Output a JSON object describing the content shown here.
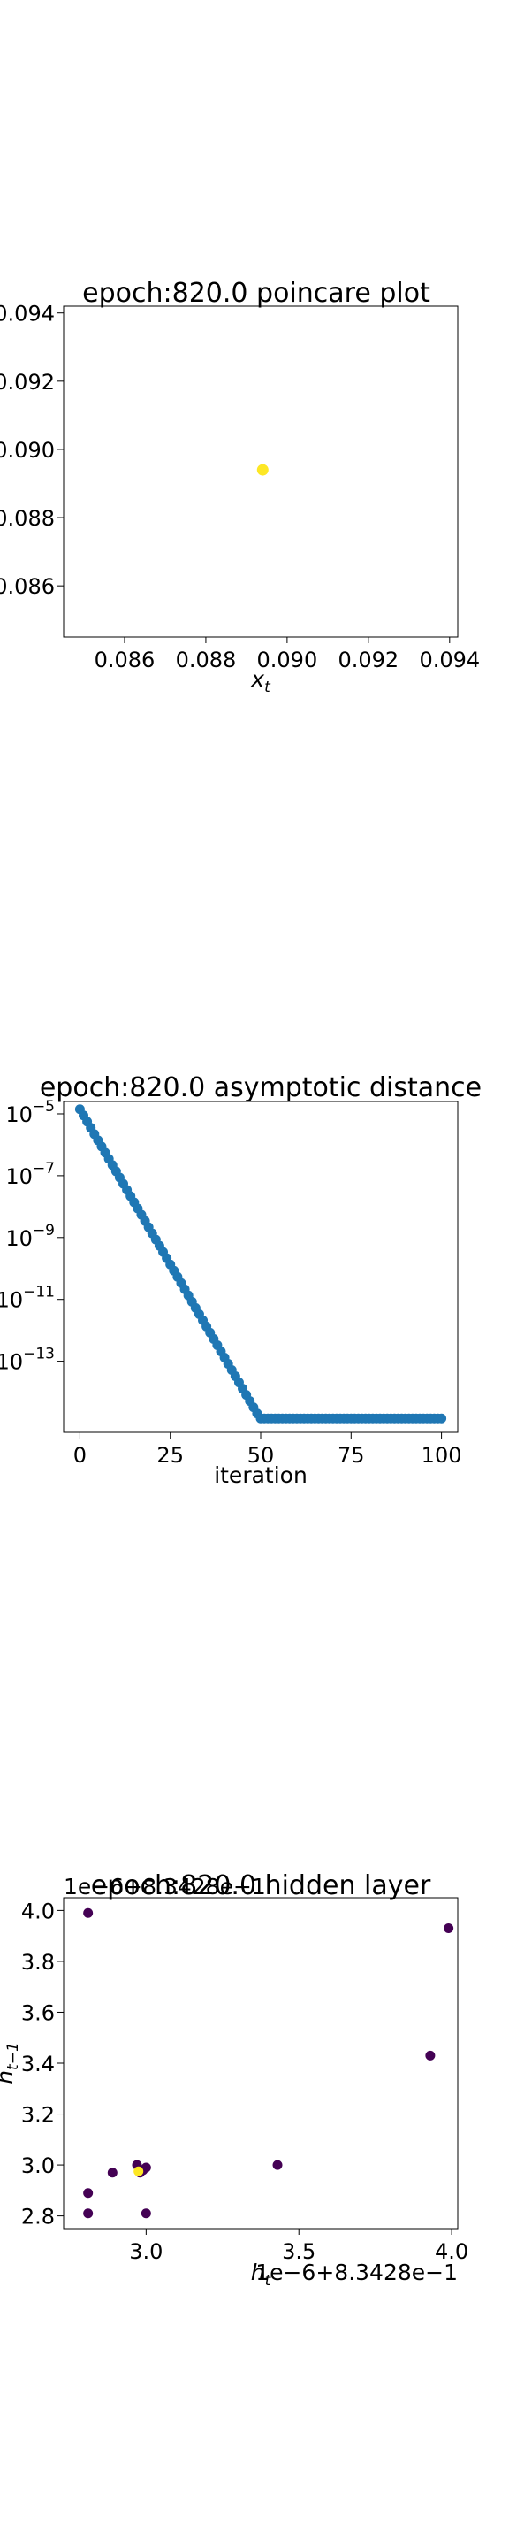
{
  "chart_data": [
    {
      "type": "scatter",
      "title": "epoch:820.0 poincare plot",
      "xlabel": "x_t",
      "ylabel": "",
      "xlim": [
        0.0845,
        0.0942
      ],
      "ylim": [
        0.0845,
        0.0942
      ],
      "xticks": [
        0.086,
        0.088,
        0.09,
        0.092,
        0.094
      ],
      "xtick_labels": [
        "0.086",
        "0.088",
        "0.090",
        "0.092",
        "0.094"
      ],
      "yticks": [
        0.086,
        0.088,
        0.09,
        0.092,
        0.094
      ],
      "ytick_labels": [
        "0.086",
        "0.088",
        "0.090",
        "0.092",
        "0.094"
      ],
      "points": [
        {
          "x": 0.0894,
          "y": 0.0894
        }
      ],
      "point_color": "#fde725",
      "grid": false
    },
    {
      "type": "scatter",
      "title": "epoch:820.0 asymptotic distance",
      "xlabel": "iteration",
      "ylabel": "",
      "y_scale": "log",
      "xlim": [
        -4.5,
        104.5
      ],
      "ylim_log10": [
        -15.3,
        -4.6
      ],
      "xticks": [
        0,
        25,
        50,
        75,
        100
      ],
      "xtick_labels": [
        "0",
        "25",
        "50",
        "75",
        "100"
      ],
      "ytick_exponents": [
        -5,
        -7,
        -9,
        -11,
        -13
      ],
      "ytick_labels": [
        "10",
        "10",
        "10",
        "10",
        "10"
      ],
      "ytick_sup": [
        "−5",
        "−7",
        "−9",
        "−11",
        "−13"
      ],
      "x_start": 0,
      "x_end": 100,
      "log10_start": -4.85,
      "log10_slope": -0.2008,
      "log10_floor": -14.85,
      "point_color": "#1f77b4",
      "grid": false
    },
    {
      "type": "scatter",
      "title": "epoch:820.0 hidden layer",
      "xlabel": "h_t",
      "ylabel": "h_{t−1}",
      "x_offset_label": "1e−6+8.3428e−1",
      "y_offset_label": "1e−6+8.3428e−1",
      "xlim": [
        2.73,
        4.02
      ],
      "ylim": [
        2.75,
        4.05
      ],
      "xticks": [
        3.0,
        3.5,
        4.0
      ],
      "xtick_labels": [
        "3.0",
        "3.5",
        "4.0"
      ],
      "yticks": [
        2.8,
        3.0,
        3.2,
        3.4,
        3.6,
        3.8,
        4.0
      ],
      "ytick_labels": [
        "2.8",
        "3.0",
        "3.2",
        "3.4",
        "3.6",
        "3.8",
        "4.0"
      ],
      "points": [
        {
          "x": 2.81,
          "y": 3.99,
          "c": "#440154"
        },
        {
          "x": 3.99,
          "y": 3.93,
          "c": "#440154"
        },
        {
          "x": 3.93,
          "y": 3.43,
          "c": "#440154"
        },
        {
          "x": 3.43,
          "y": 3.0,
          "c": "#440154"
        },
        {
          "x": 3.0,
          "y": 2.81,
          "c": "#440154"
        },
        {
          "x": 2.81,
          "y": 2.89,
          "c": "#440154"
        },
        {
          "x": 2.89,
          "y": 2.97,
          "c": "#440154"
        },
        {
          "x": 2.97,
          "y": 3.0,
          "c": "#440154"
        },
        {
          "x": 3.0,
          "y": 2.99,
          "c": "#440154"
        },
        {
          "x": 2.99,
          "y": 2.98,
          "c": "#440154"
        },
        {
          "x": 2.98,
          "y": 2.97,
          "c": "#440154"
        },
        {
          "x": 2.81,
          "y": 2.81,
          "c": "#440154"
        },
        {
          "x": 2.975,
          "y": 2.975,
          "c": "#fde725"
        }
      ],
      "grid": false
    }
  ]
}
